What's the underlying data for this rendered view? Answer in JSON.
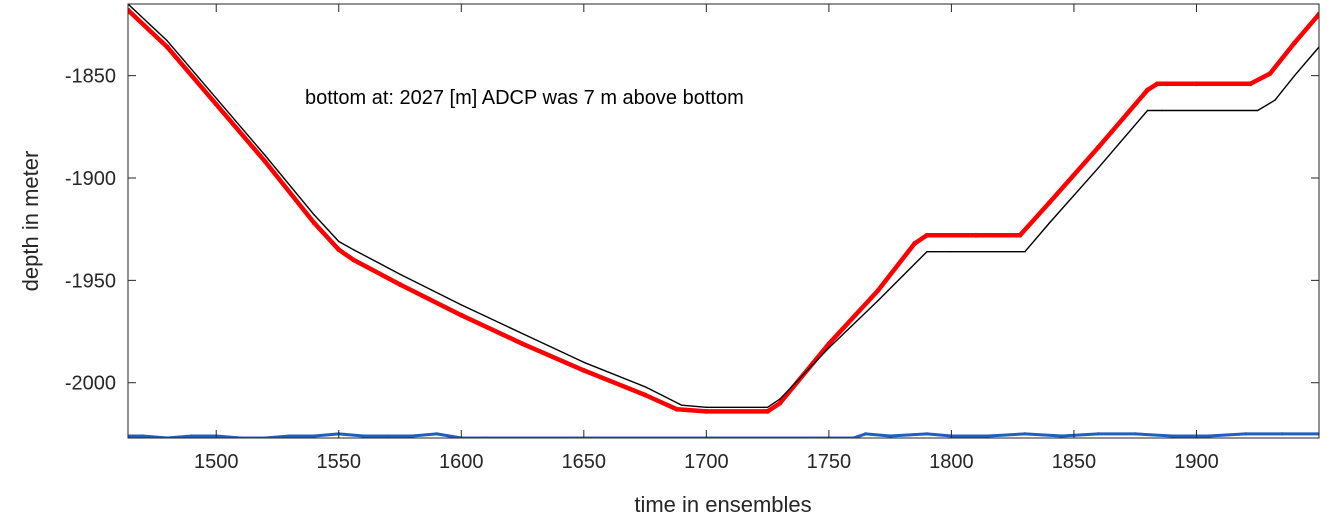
{
  "chart_data": {
    "type": "line",
    "xlabel": "time in ensembles",
    "ylabel": "depth in meter",
    "annotation": "bottom at: 2027 [m]   ADCP was 7 m above bottom",
    "xlim": [
      1464,
      1950
    ],
    "ylim": [
      -2027,
      -1815
    ],
    "xticks": [
      1500,
      1550,
      1600,
      1650,
      1700,
      1750,
      1800,
      1850,
      1900
    ],
    "yticks": [
      -1850,
      -1900,
      -1950,
      -2000
    ],
    "grid": false,
    "series": [
      {
        "color": "#ff0000",
        "style": "thick-markers",
        "points": [
          [
            1464,
            -1818
          ],
          [
            1480,
            -1836
          ],
          [
            1500,
            -1864
          ],
          [
            1520,
            -1892
          ],
          [
            1540,
            -1922
          ],
          [
            1550,
            -1935
          ],
          [
            1556,
            -1940
          ],
          [
            1575,
            -1952
          ],
          [
            1600,
            -1967
          ],
          [
            1625,
            -1981
          ],
          [
            1650,
            -1994
          ],
          [
            1675,
            -2006
          ],
          [
            1688,
            -2013
          ],
          [
            1700,
            -2014
          ],
          [
            1725,
            -2014
          ],
          [
            1730,
            -2010
          ],
          [
            1750,
            -1981
          ],
          [
            1770,
            -1955
          ],
          [
            1785,
            -1932
          ],
          [
            1790,
            -1928
          ],
          [
            1810,
            -1928
          ],
          [
            1828,
            -1928
          ],
          [
            1840,
            -1912
          ],
          [
            1860,
            -1885
          ],
          [
            1880,
            -1857
          ],
          [
            1884,
            -1854
          ],
          [
            1900,
            -1854
          ],
          [
            1922,
            -1854
          ],
          [
            1930,
            -1849
          ],
          [
            1940,
            -1834
          ],
          [
            1950,
            -1820
          ]
        ]
      },
      {
        "color": "#000000",
        "style": "thin",
        "points": [
          [
            1464,
            -1815
          ],
          [
            1480,
            -1833
          ],
          [
            1500,
            -1861
          ],
          [
            1520,
            -1889
          ],
          [
            1540,
            -1918
          ],
          [
            1550,
            -1931
          ],
          [
            1556,
            -1935
          ],
          [
            1575,
            -1947
          ],
          [
            1600,
            -1962
          ],
          [
            1625,
            -1976
          ],
          [
            1650,
            -1990
          ],
          [
            1675,
            -2002
          ],
          [
            1690,
            -2011
          ],
          [
            1700,
            -2012
          ],
          [
            1725,
            -2012
          ],
          [
            1730,
            -2008
          ],
          [
            1750,
            -1983
          ],
          [
            1770,
            -1960
          ],
          [
            1790,
            -1936
          ],
          [
            1800,
            -1936
          ],
          [
            1830,
            -1936
          ],
          [
            1840,
            -1922
          ],
          [
            1860,
            -1895
          ],
          [
            1880,
            -1867
          ],
          [
            1886,
            -1867
          ],
          [
            1925,
            -1867
          ],
          [
            1932,
            -1862
          ],
          [
            1940,
            -1850
          ],
          [
            1950,
            -1836
          ]
        ]
      },
      {
        "color": "#1f5fbf",
        "style": "bottom-trace",
        "points": [
          [
            1464,
            -2026
          ],
          [
            1470,
            -2026
          ],
          [
            1480,
            -2027
          ],
          [
            1490,
            -2026
          ],
          [
            1500,
            -2026
          ],
          [
            1510,
            -2027
          ],
          [
            1520,
            -2027
          ],
          [
            1530,
            -2026
          ],
          [
            1540,
            -2026
          ],
          [
            1550,
            -2025
          ],
          [
            1560,
            -2026
          ],
          [
            1570,
            -2026
          ],
          [
            1580,
            -2026
          ],
          [
            1590,
            -2025
          ],
          [
            1600,
            -2027
          ],
          [
            1610,
            -2027
          ],
          [
            1760,
            -2027
          ],
          [
            1765,
            -2025
          ],
          [
            1775,
            -2026
          ],
          [
            1790,
            -2025
          ],
          [
            1800,
            -2026
          ],
          [
            1815,
            -2026
          ],
          [
            1830,
            -2025
          ],
          [
            1845,
            -2026
          ],
          [
            1860,
            -2025
          ],
          [
            1875,
            -2025
          ],
          [
            1890,
            -2026
          ],
          [
            1905,
            -2026
          ],
          [
            1920,
            -2025
          ],
          [
            1935,
            -2025
          ],
          [
            1950,
            -2025
          ]
        ]
      }
    ]
  }
}
